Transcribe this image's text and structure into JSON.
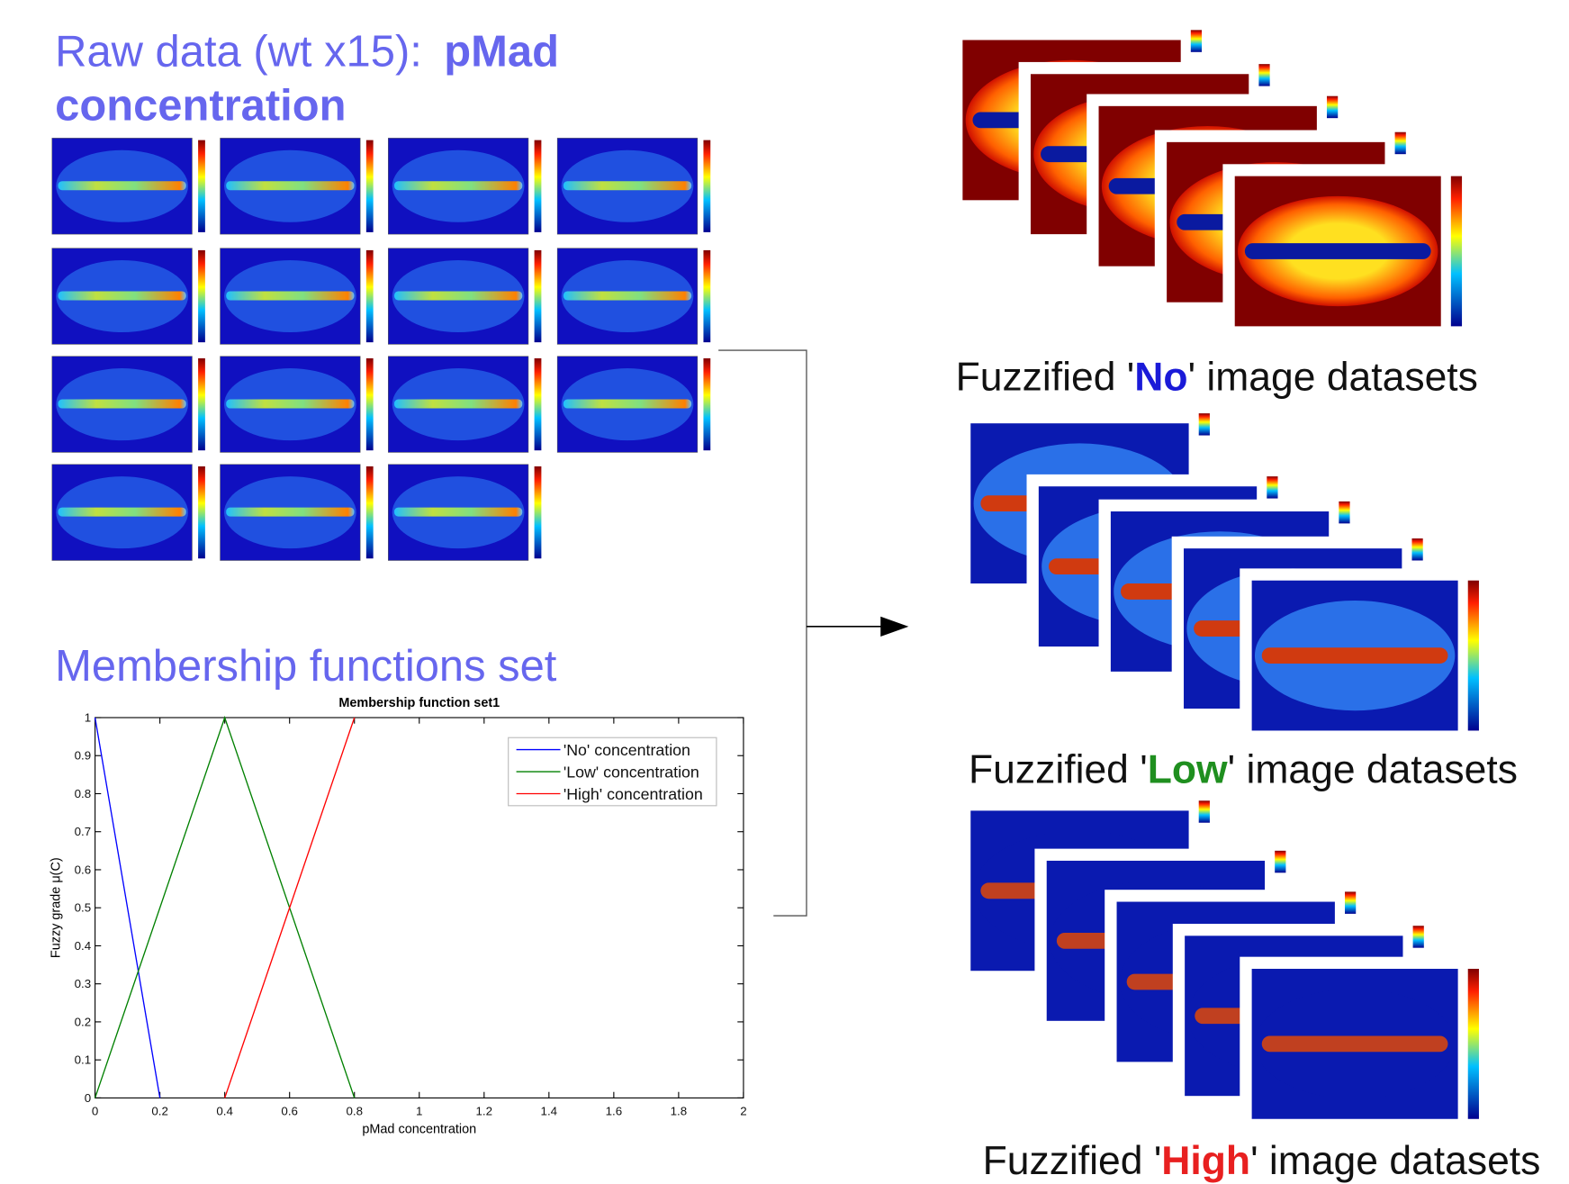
{
  "heading": {
    "prefix": "Raw data (wt  x15):",
    "emphasis": [
      "pMad",
      "concentration"
    ]
  },
  "membership_heading": "Membership functions set",
  "captions": [
    {
      "before": "Fuzzified '",
      "key": "No",
      "after": "' image datasets"
    },
    {
      "before": "Fuzzified '",
      "key": "Low",
      "after": "' image datasets"
    },
    {
      "before": "Fuzzified '",
      "key": "High",
      "after": "' image datasets"
    }
  ],
  "chart_data": {
    "type": "line",
    "title": "Membership function set1",
    "x_label": "pMad concentration",
    "y_label": "Fuzzy grade μ(C)",
    "xlim": [
      0,
      2
    ],
    "xticks": [
      0,
      0.2,
      0.4,
      0.6,
      0.8,
      1,
      1.2,
      1.4,
      1.6,
      1.8,
      2
    ],
    "ylim": [
      0,
      1
    ],
    "yticks": [
      0,
      0.1,
      0.2,
      0.3,
      0.4,
      0.5,
      0.6,
      0.7,
      0.8,
      0.9,
      1
    ],
    "legend": "upper right",
    "series": [
      {
        "name": "'No' concentration",
        "color": "#0000ff",
        "x": [
          0,
          0.2
        ],
        "values": [
          1,
          0
        ]
      },
      {
        "name": "'Low' concentration",
        "color": "#008000",
        "x": [
          0,
          0.4,
          0.8
        ],
        "values": [
          0,
          1,
          0
        ]
      },
      {
        "name": "'High' concentration",
        "color": "#ff0000",
        "x": [
          0.4,
          0.8
        ],
        "values": [
          0,
          1
        ]
      }
    ]
  }
}
